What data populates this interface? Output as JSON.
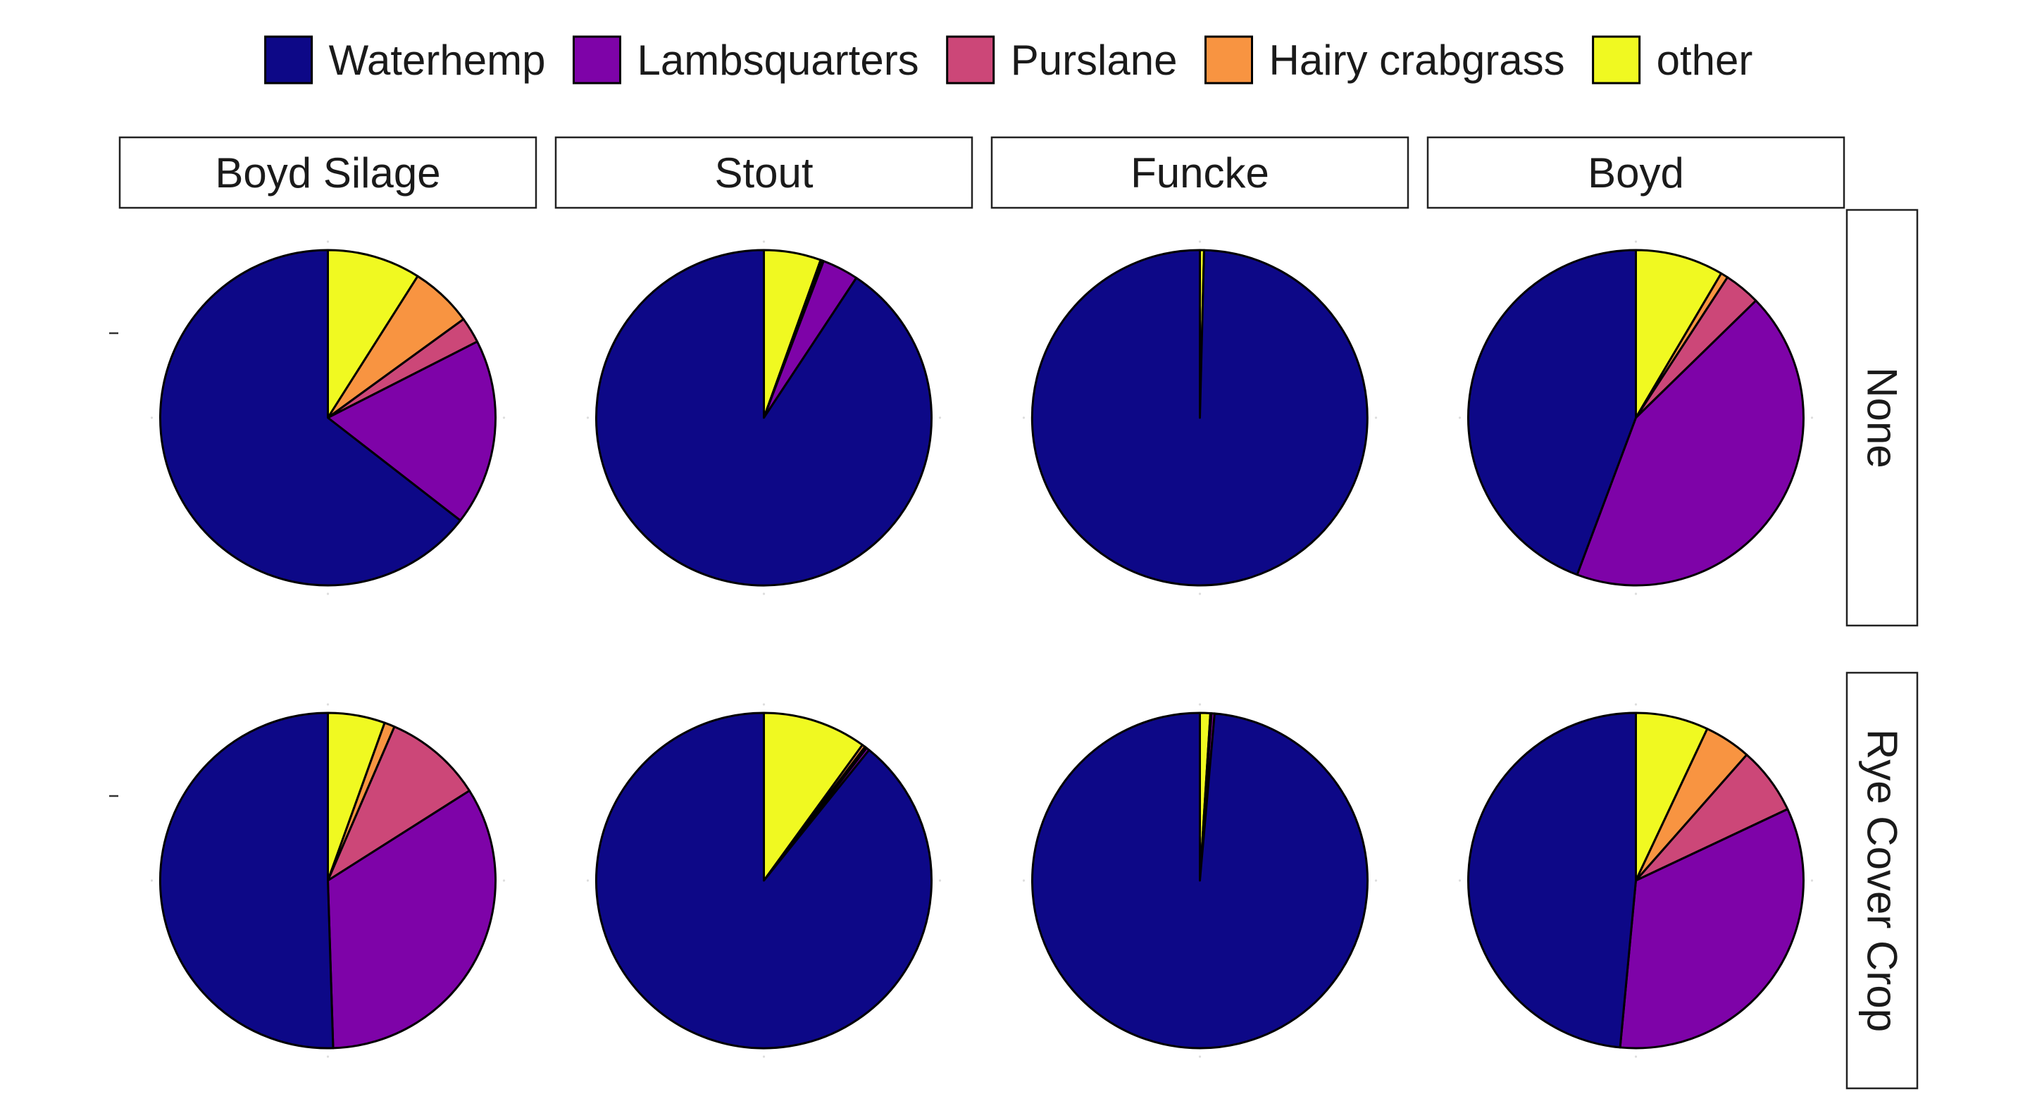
{
  "chart_data": {
    "type": "pie",
    "title": "",
    "legend": {
      "placement": "top",
      "entries": [
        {
          "name": "Waterhemp",
          "color": "#0D0887"
        },
        {
          "name": "Lambsquarters",
          "color": "#7E03A8"
        },
        {
          "name": "Purslane",
          "color": "#CC4778"
        },
        {
          "name": "Hairy crabgrass",
          "color": "#F89441"
        },
        {
          "name": "other",
          "color": "#F0F921"
        }
      ]
    },
    "columns": [
      "Boyd Silage",
      "Stout",
      "Funcke",
      "Boyd"
    ],
    "rows": [
      "None",
      "Rye Cover Crop"
    ],
    "slice_order_clockwise_from_top": [
      "other",
      "Hairy crabgrass",
      "Purslane",
      "Lambsquarters",
      "Waterhemp"
    ],
    "panels": [
      {
        "row": "None",
        "column": "Boyd Silage",
        "shares_percent": {
          "Waterhemp": 64.5,
          "Lambsquarters": 18.0,
          "Purslane": 2.5,
          "Hairy crabgrass": 6.0,
          "other": 9.0
        }
      },
      {
        "row": "None",
        "column": "Stout",
        "shares_percent": {
          "Waterhemp": 90.7,
          "Lambsquarters": 3.5,
          "Purslane": 0.2,
          "Hairy crabgrass": 0.1,
          "other": 5.5
        }
      },
      {
        "row": "None",
        "column": "Funcke",
        "shares_percent": {
          "Waterhemp": 99.6,
          "Lambsquarters": 0.0,
          "Purslane": 0.0,
          "Hairy crabgrass": 0.0,
          "other": 0.4
        }
      },
      {
        "row": "None",
        "column": "Boyd",
        "shares_percent": {
          "Waterhemp": 44.3,
          "Lambsquarters": 43.0,
          "Purslane": 3.5,
          "Hairy crabgrass": 0.7,
          "other": 8.5
        }
      },
      {
        "row": "Rye Cover Crop",
        "column": "Boyd Silage",
        "shares_percent": {
          "Waterhemp": 50.5,
          "Lambsquarters": 33.5,
          "Purslane": 9.5,
          "Hairy crabgrass": 1.0,
          "other": 5.5
        }
      },
      {
        "row": "Rye Cover Crop",
        "column": "Stout",
        "shares_percent": {
          "Waterhemp": 89.2,
          "Lambsquarters": 0.3,
          "Purslane": 0.2,
          "Hairy crabgrass": 0.3,
          "other": 10.0
        }
      },
      {
        "row": "Rye Cover Crop",
        "column": "Funcke",
        "shares_percent": {
          "Waterhemp": 98.6,
          "Lambsquarters": 0.3,
          "Purslane": 0.1,
          "Hairy crabgrass": 0.0,
          "other": 1.0
        }
      },
      {
        "row": "Rye Cover Crop",
        "column": "Boyd",
        "shares_percent": {
          "Waterhemp": 48.5,
          "Lambsquarters": 33.5,
          "Purslane": 6.5,
          "Hairy crabgrass": 4.5,
          "other": 7.0
        }
      }
    ]
  }
}
